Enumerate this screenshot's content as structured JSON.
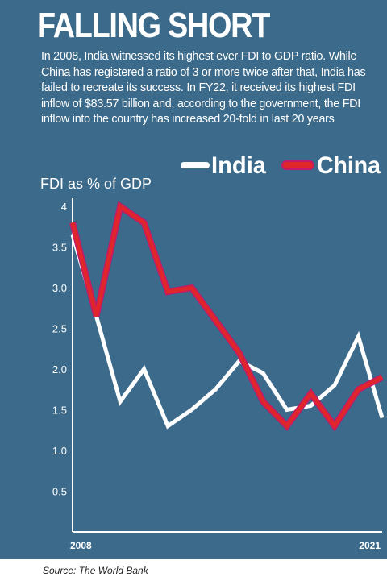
{
  "title": "FALLING SHORT",
  "description": "In 2008, India witnessed its highest ever FDI to GDP ratio. While China has registered a ratio of 3 or more twice after that, India has failed to recreate its success. In FY22, it received its highest FDI inflow of $83.57 billion and, according to the government, the FDI inflow into the country has increased 20-fold in last 20 years",
  "source": "Source: The World Bank",
  "colors": {
    "background": "#3b6a8a",
    "india": "#ffffff",
    "china": "#e0262b",
    "china_glow": "#c01a6a"
  },
  "chart_data": {
    "type": "line",
    "ylabel": "FDI as % of GDP",
    "x": [
      2008,
      2009,
      2010,
      2011,
      2012,
      2013,
      2014,
      2015,
      2016,
      2017,
      2018,
      2019,
      2020,
      2021
    ],
    "x_tick_labels": [
      "2008",
      "2021"
    ],
    "y_ticks": [
      "0.5",
      "1.0",
      "1.5",
      "2.0",
      "2.5",
      "3.0",
      "3.5",
      "4"
    ],
    "y_tick_values": [
      0.5,
      1.0,
      1.5,
      2.0,
      2.5,
      3.0,
      3.5,
      4.0
    ],
    "ylim": [
      0,
      4.1
    ],
    "legend_position": "top-right",
    "series": [
      {
        "name": "India",
        "values": [
          3.65,
          2.65,
          1.6,
          2.0,
          1.3,
          1.5,
          1.75,
          2.1,
          1.95,
          1.5,
          1.55,
          1.8,
          2.4,
          1.4
        ]
      },
      {
        "name": "China",
        "values": [
          3.8,
          2.65,
          4.0,
          3.8,
          2.95,
          3.0,
          2.6,
          2.2,
          1.6,
          1.3,
          1.7,
          1.3,
          1.75,
          1.9
        ]
      }
    ]
  }
}
